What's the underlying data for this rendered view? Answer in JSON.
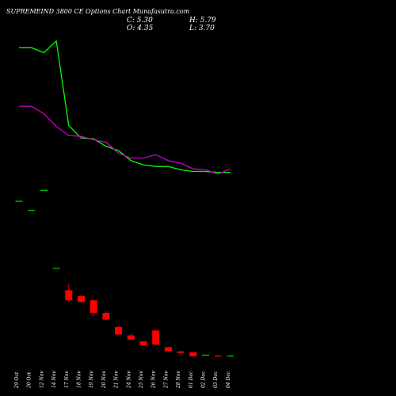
{
  "header": {
    "title": "SUPREMEIND 3800  CE Options  Chart Munafasutra.com",
    "close": "C: 5.30",
    "high": "H: 5.79",
    "open": "O: 4.35",
    "low": "L: 3.70"
  },
  "chart_data": {
    "type": "candlestick",
    "categories": [
      "29 Oct",
      "30 Oct",
      "12 Nov",
      "14 Nov",
      "17 Nov",
      "18 Nov",
      "19 Nov",
      "20 Nov",
      "21 Nov",
      "24 Nov",
      "25 Nov",
      "26 Nov",
      "27 Nov",
      "28 Nov",
      "01 Dec",
      "02 Dec",
      "03 Dec",
      "04 Dec"
    ],
    "candles": [
      {
        "open": 160,
        "high": 160,
        "low": 160,
        "close": 160
      },
      {
        "open": 149,
        "high": 149,
        "low": 149,
        "close": 149
      },
      {
        "open": 173,
        "high": 173,
        "low": 173,
        "close": 173
      },
      {
        "open": 80,
        "high": 80,
        "low": 80,
        "close": 80
      },
      {
        "open": 53,
        "high": 60,
        "low": 39,
        "close": 41
      },
      {
        "open": 46,
        "high": 48,
        "low": 38,
        "close": 39
      },
      {
        "open": 41,
        "high": 42,
        "low": 22,
        "close": 26
      },
      {
        "open": 26,
        "high": 28,
        "low": 17,
        "close": 18
      },
      {
        "open": 9,
        "high": 11,
        "low": 0,
        "close": 0
      },
      {
        "open": -1,
        "high": 1,
        "low": -7,
        "close": -6
      },
      {
        "open": -8,
        "high": -8,
        "low": -14,
        "close": -13
      },
      {
        "open": 5,
        "high": 5,
        "low": -13,
        "close": -12
      },
      {
        "open": -15,
        "high": -15,
        "low": -20,
        "close": -20
      },
      {
        "open": -20,
        "high": -20,
        "low": -22,
        "close": -22
      },
      {
        "open": -21,
        "high": -21,
        "low": -26,
        "close": -26
      },
      {
        "open": -24,
        "high": -24,
        "low": -24,
        "close": -24
      },
      {
        "open": -25,
        "high": -25,
        "low": -27,
        "close": -26
      },
      {
        "open": -26,
        "high": -25,
        "low": -27,
        "close": -25
      }
    ],
    "series": [
      {
        "color": "#00ff00",
        "values": [
          343,
          343,
          337,
          351,
          250,
          235,
          234,
          225,
          220,
          208,
          203,
          201,
          201,
          197,
          195,
          195,
          194,
          194
        ]
      },
      {
        "color": "#cc00cc",
        "values": [
          273,
          273,
          264,
          249,
          238,
          237,
          233,
          230,
          217,
          211,
          211,
          215,
          208,
          205,
          198,
          197,
          192,
          198
        ]
      }
    ],
    "ylim": [
      -45,
      400
    ],
    "colors": {
      "up": "#00cc00",
      "down": "#ff0000",
      "background": "#000000",
      "text": "#ffffff"
    }
  }
}
